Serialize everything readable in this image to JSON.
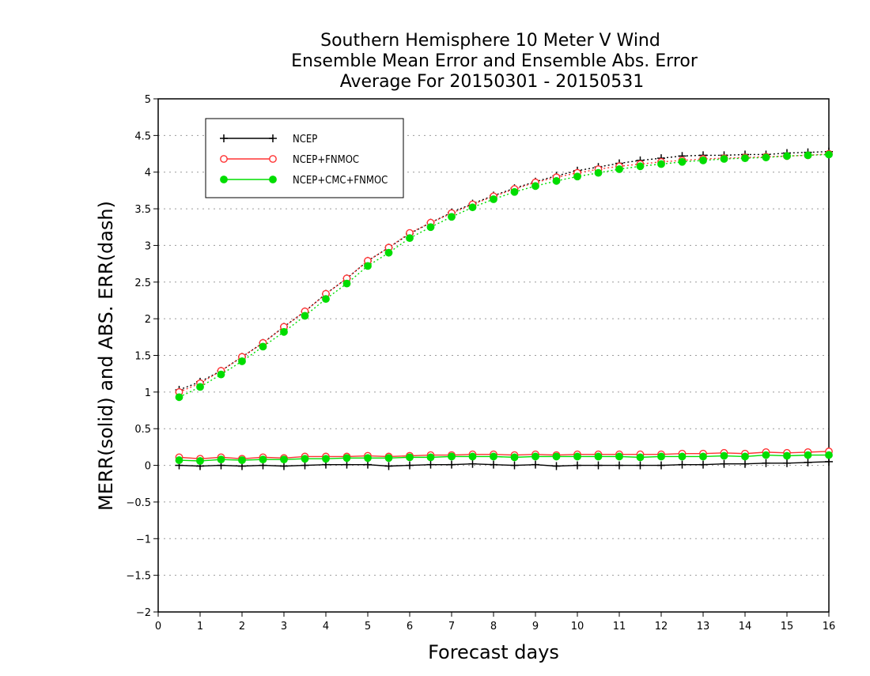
{
  "chart_data": {
    "type": "line",
    "title": [
      "Southern Hemisphere 10 Meter V Wind",
      "Ensemble Mean Error and Ensemble Abs. Error",
      "Average For 20150301 - 20150531"
    ],
    "xlabel": "Forecast days",
    "ylabel": "MERR(solid) and ABS. ERR(dash)",
    "xlim": [
      0,
      16
    ],
    "ylim": [
      -2,
      5
    ],
    "xticks": [
      "0",
      "1",
      "2",
      "3",
      "4",
      "5",
      "6",
      "7",
      "8",
      "9",
      "10",
      "11",
      "12",
      "13",
      "14",
      "15",
      "16"
    ],
    "yticks": [
      "5",
      "4.5",
      "4",
      "3.5",
      "3",
      "2.5",
      "2",
      "1.5",
      "1",
      "0.5",
      "0",
      "-0.5",
      "-1",
      "-1.5",
      "-2"
    ],
    "grid": true,
    "legend_position": "top-left",
    "x": [
      0.5,
      1,
      1.5,
      2,
      2.5,
      3,
      3.5,
      4,
      4.5,
      5,
      5.5,
      6,
      6.5,
      7,
      7.5,
      8,
      8.5,
      9,
      9.5,
      10,
      10.5,
      11,
      11.5,
      12,
      12.5,
      13,
      13.5,
      14,
      14.5,
      15,
      15.5,
      16
    ],
    "series": [
      {
        "name": "NCEP",
        "color": "#000000",
        "marker": "plus",
        "merr": [
          0.0,
          -0.01,
          0.0,
          -0.01,
          0.0,
          -0.01,
          0.0,
          0.01,
          0.01,
          0.01,
          -0.01,
          0.0,
          0.01,
          0.01,
          0.02,
          0.01,
          0.0,
          0.01,
          -0.01,
          0.0,
          0.0,
          0.0,
          0.0,
          0.0,
          0.01,
          0.01,
          0.02,
          0.02,
          0.03,
          0.03,
          0.04,
          0.05
        ],
        "abs_err": [
          1.03,
          1.14,
          1.29,
          1.48,
          1.67,
          1.89,
          2.1,
          2.34,
          2.55,
          2.79,
          2.97,
          3.16,
          3.31,
          3.45,
          3.57,
          3.68,
          3.78,
          3.87,
          3.95,
          4.02,
          4.07,
          4.12,
          4.16,
          4.19,
          4.22,
          4.23,
          4.23,
          4.24,
          4.24,
          4.26,
          4.27,
          4.28
        ]
      },
      {
        "name": "NCEP+FNMOC",
        "color": "#ff3333",
        "marker": "open-circle",
        "merr": [
          0.11,
          0.09,
          0.11,
          0.09,
          0.11,
          0.1,
          0.12,
          0.12,
          0.12,
          0.13,
          0.12,
          0.13,
          0.14,
          0.14,
          0.15,
          0.15,
          0.14,
          0.15,
          0.14,
          0.15,
          0.15,
          0.15,
          0.15,
          0.15,
          0.16,
          0.16,
          0.17,
          0.16,
          0.18,
          0.17,
          0.18,
          0.19
        ],
        "abs_err": [
          1.0,
          1.12,
          1.29,
          1.48,
          1.67,
          1.89,
          2.1,
          2.34,
          2.55,
          2.79,
          2.97,
          3.17,
          3.31,
          3.44,
          3.56,
          3.67,
          3.77,
          3.86,
          3.93,
          3.99,
          4.04,
          4.08,
          4.11,
          4.14,
          4.16,
          4.18,
          4.19,
          4.2,
          4.21,
          4.22,
          4.23,
          4.25
        ]
      },
      {
        "name": "NCEP+CMC+FNMOC",
        "color": "#00dd00",
        "marker": "filled-circle",
        "merr": [
          0.07,
          0.06,
          0.08,
          0.07,
          0.08,
          0.08,
          0.09,
          0.09,
          0.1,
          0.1,
          0.1,
          0.11,
          0.11,
          0.12,
          0.12,
          0.12,
          0.11,
          0.12,
          0.12,
          0.12,
          0.12,
          0.12,
          0.11,
          0.12,
          0.12,
          0.12,
          0.13,
          0.12,
          0.14,
          0.13,
          0.14,
          0.14
        ],
        "abs_err": [
          0.93,
          1.07,
          1.24,
          1.42,
          1.62,
          1.82,
          2.04,
          2.27,
          2.48,
          2.72,
          2.9,
          3.1,
          3.25,
          3.39,
          3.52,
          3.63,
          3.73,
          3.81,
          3.88,
          3.94,
          3.99,
          4.04,
          4.08,
          4.11,
          4.14,
          4.16,
          4.18,
          4.19,
          4.2,
          4.22,
          4.23,
          4.24
        ]
      }
    ]
  }
}
